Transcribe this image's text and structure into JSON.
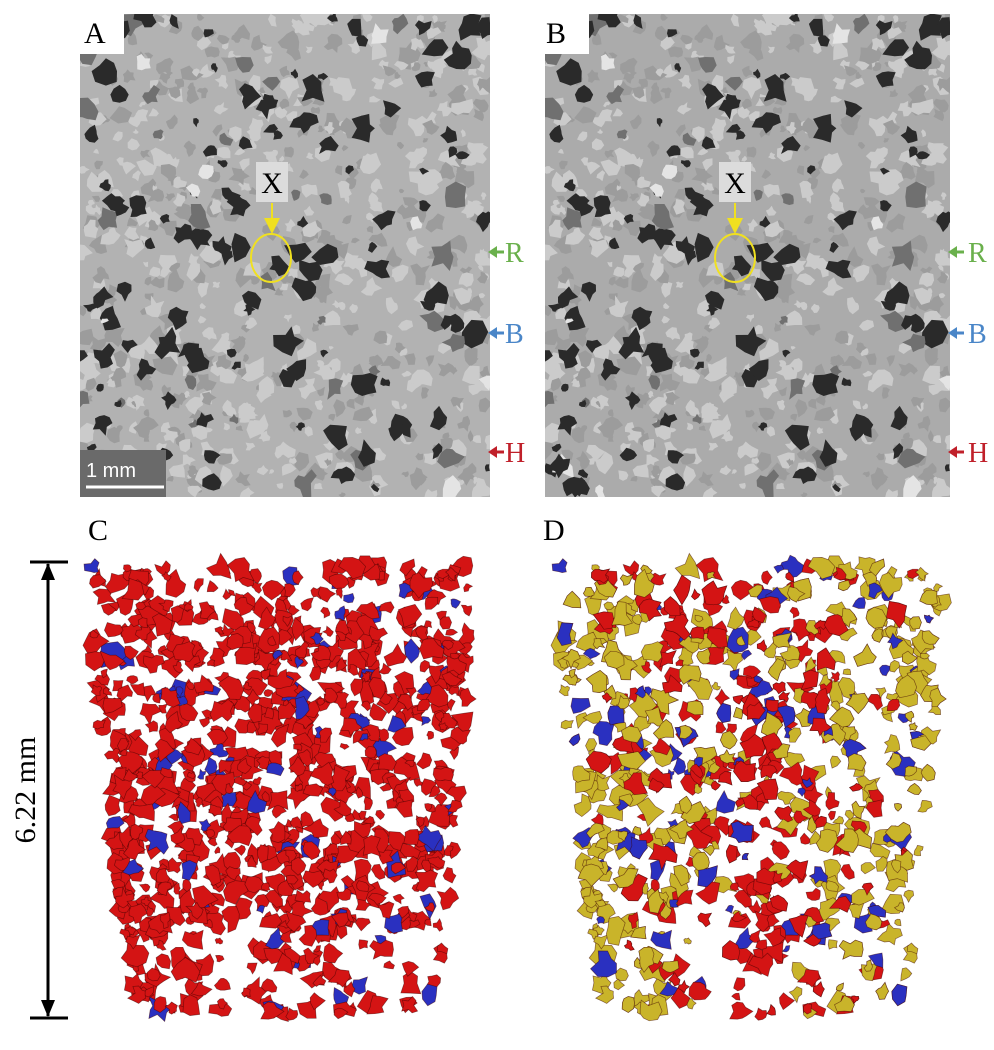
{
  "panels": [
    {
      "label": "A",
      "marker": "X",
      "arrows": [
        "R",
        "B",
        "H"
      ],
      "scale_bar": "1 mm"
    },
    {
      "label": "B",
      "marker": "X",
      "arrows": [
        "R",
        "B",
        "H"
      ]
    },
    {
      "label": "C",
      "height_label": "6.22 mm"
    },
    {
      "label": "D"
    }
  ]
}
